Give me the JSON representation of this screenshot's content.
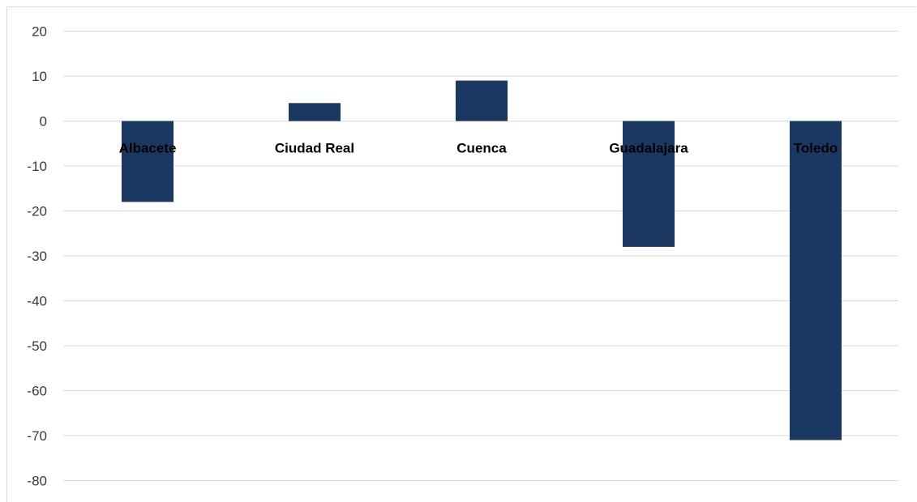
{
  "chart_data": {
    "type": "bar",
    "title": "",
    "xlabel": "",
    "ylabel": "",
    "categories": [
      "Albacete",
      "Ciudad Real",
      "Cuenca",
      "Guadalajara",
      "Toledo"
    ],
    "values": [
      -18,
      4,
      9,
      -28,
      -71
    ],
    "ylim": [
      -80,
      20
    ],
    "yticks": [
      20,
      10,
      0,
      -10,
      -20,
      -30,
      -40,
      -50,
      -60,
      -70,
      -80
    ],
    "grid": true,
    "legend": "none",
    "bar_color": "#1a3862",
    "grid_color": "#d9d9d9"
  }
}
